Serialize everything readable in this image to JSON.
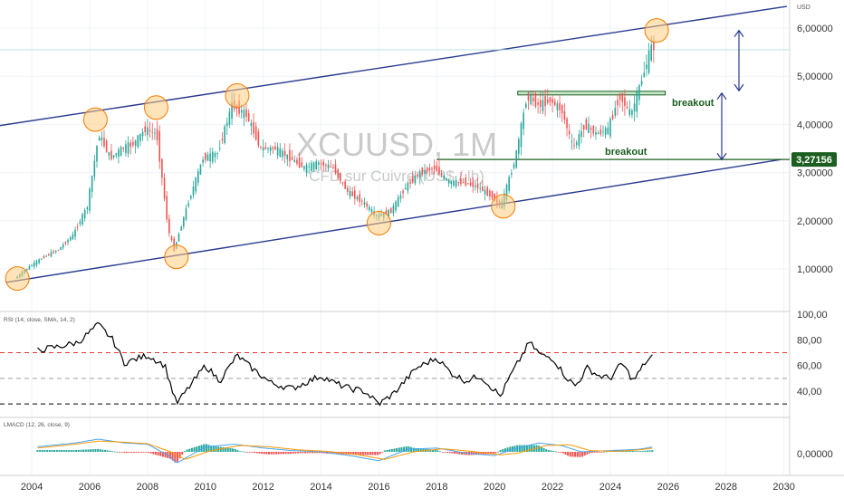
{
  "header": {
    "symbol": "XCUUSD, 1M",
    "subtitle": "CFD sur Cuivre (US$ / lb)",
    "currency": "USD"
  },
  "price_axis": {
    "ticks": [
      "6,00000",
      "5,00000",
      "4,00000",
      "3,00000",
      "2,00000",
      "1,00000"
    ],
    "tick_values": [
      6,
      5,
      4,
      3,
      2,
      1
    ],
    "current_price_label": "3,27156",
    "current_price": 3.27156
  },
  "time_axis": {
    "ticks": [
      "2004",
      "2006",
      "2008",
      "2010",
      "2012",
      "2014",
      "2016",
      "2018",
      "2020",
      "2022",
      "2024",
      "2026",
      "2028",
      "2030"
    ],
    "tick_years": [
      2004,
      2006,
      2008,
      2010,
      2012,
      2014,
      2016,
      2018,
      2020,
      2022,
      2024,
      2026,
      2028,
      2030
    ]
  },
  "annotations": {
    "breakout_upper": "breakout",
    "breakout_lower": "breakout"
  },
  "rsi": {
    "label": "RSI (14, close, SMA, 14, 2)",
    "ticks": [
      "100,00",
      "80,00",
      "60,00",
      "40,00"
    ],
    "tick_values": [
      100,
      80,
      60,
      40
    ],
    "upper_level": 70,
    "middle_level": 50,
    "lower_level": 30
  },
  "macd": {
    "label": "LMACD (12, 26, close, 9)",
    "ticks": [
      "0,00000"
    ]
  },
  "colors": {
    "bull": "#26a69a",
    "bear": "#ef5350",
    "channel": "#2a3b8f",
    "support": "#1b5e20",
    "circle_fill": "#ffcc80",
    "circle_stroke": "#f57c00",
    "rsi_line": "#000000",
    "rsi_upper": "#e53935",
    "rsi_mid": "#9e9e9e",
    "macd_line": "#42a5f5",
    "signal_line": "#ff9800",
    "price_tag": "#1b5e20"
  },
  "chart_data": {
    "type": "candlestick",
    "title": "XCUUSD, 1M",
    "series": [
      {
        "name": "XCUUSD",
        "x": [
          2003.5,
          2004.0,
          2004.5,
          2005.0,
          2005.5,
          2006.0,
          2006.4,
          2006.8,
          2007.2,
          2007.6,
          2008.0,
          2008.4,
          2008.8,
          2009.0,
          2009.5,
          2010.0,
          2010.5,
          2011.0,
          2011.5,
          2012.0,
          2012.5,
          2013.0,
          2013.5,
          2014.0,
          2014.5,
          2015.0,
          2015.5,
          2016.0,
          2016.5,
          2017.0,
          2017.5,
          2018.0,
          2018.5,
          2019.0,
          2019.5,
          2020.0,
          2020.3,
          2020.8,
          2021.2,
          2021.6,
          2022.0,
          2022.4,
          2022.8,
          2023.2,
          2023.6,
          2024.0,
          2024.4,
          2024.8,
          2025.2,
          2025.5
        ],
        "y": [
          0.8,
          1.05,
          1.25,
          1.4,
          1.7,
          2.3,
          3.8,
          3.3,
          3.5,
          3.6,
          3.9,
          3.8,
          1.8,
          1.4,
          2.4,
          3.3,
          3.4,
          4.4,
          4.2,
          3.5,
          3.5,
          3.3,
          3.1,
          3.2,
          3.1,
          2.6,
          2.4,
          2.1,
          2.2,
          2.7,
          3.0,
          3.1,
          2.8,
          2.8,
          2.7,
          2.5,
          2.3,
          3.3,
          4.6,
          4.4,
          4.5,
          4.3,
          3.5,
          4.0,
          3.8,
          3.9,
          4.6,
          4.2,
          5.0,
          5.6
        ]
      }
    ],
    "xlim": [
      2002.9,
      2030.2
    ],
    "ylim": [
      0.2,
      6.45
    ],
    "yscale": "linear"
  },
  "overlays": {
    "channel_upper": {
      "x1": 2002.6,
      "y1": 3.95,
      "x2": 2030.1,
      "y2": 6.45
    },
    "channel_lower": {
      "x1": 2003.1,
      "y1": 0.72,
      "x2": 2029.9,
      "y2": 3.27
    },
    "support_level": 3.27156,
    "resistance_level": 4.65,
    "highlights": [
      {
        "x": 2003.5,
        "y": 0.8
      },
      {
        "x": 2006.2,
        "y": 4.1
      },
      {
        "x": 2008.3,
        "y": 4.35
      },
      {
        "x": 2009.0,
        "y": 1.25
      },
      {
        "x": 2011.1,
        "y": 4.6
      },
      {
        "x": 2016.0,
        "y": 1.95
      },
      {
        "x": 2020.3,
        "y": 2.3
      },
      {
        "x": 2025.6,
        "y": 5.95
      }
    ],
    "rsi_series": {
      "x": [
        2004.2,
        2005.0,
        2005.6,
        2006.3,
        2006.8,
        2007.2,
        2008.0,
        2008.6,
        2009.0,
        2010.0,
        2010.5,
        2011.1,
        2011.6,
        2012.3,
        2013.0,
        2014.0,
        2014.5,
        2015.0,
        2015.5,
        2016.0,
        2016.5,
        2017.3,
        2018.0,
        2018.5,
        2019.0,
        2019.5,
        2020.2,
        2020.5,
        2021.2,
        2021.6,
        2022.0,
        2022.5,
        2022.8,
        2023.2,
        2023.6,
        2024.0,
        2024.4,
        2024.8,
        2025.2,
        2025.5
      ],
      "y": [
        72,
        75,
        78,
        92,
        80,
        62,
        68,
        60,
        30,
        60,
        48,
        68,
        58,
        46,
        42,
        52,
        46,
        42,
        40,
        30,
        38,
        58,
        66,
        54,
        48,
        52,
        36,
        50,
        78,
        68,
        66,
        50,
        44,
        58,
        52,
        50,
        62,
        48,
        62,
        68
      ]
    },
    "macd_line": {
      "x": [
        2004.2,
        2005.5,
        2006.3,
        2007.2,
        2008.0,
        2008.8,
        2009.0,
        2010.0,
        2011.0,
        2012.0,
        2013.0,
        2014.0,
        2015.0,
        2016.0,
        2017.0,
        2018.0,
        2019.0,
        2020.0,
        2020.5,
        2021.5,
        2022.3,
        2023.0,
        2024.0,
        2025.0,
        2025.5
      ],
      "y": [
        0.2,
        0.35,
        0.5,
        0.35,
        0.3,
        -0.2,
        -0.45,
        0.2,
        0.3,
        0.15,
        0.05,
        0.0,
        -0.15,
        -0.35,
        0.1,
        0.15,
        -0.05,
        -0.15,
        0.05,
        0.35,
        0.25,
        0.0,
        0.05,
        0.1,
        0.2
      ]
    },
    "signal_line": {
      "x": [
        2004.2,
        2005.5,
        2006.3,
        2007.2,
        2008.0,
        2008.8,
        2009.3,
        2010.2,
        2011.2,
        2012.2,
        2013.2,
        2014.2,
        2015.2,
        2016.2,
        2017.2,
        2018.2,
        2019.2,
        2020.2,
        2020.8,
        2021.8,
        2022.6,
        2023.3,
        2024.2,
        2025.0,
        2025.5
      ],
      "y": [
        0.15,
        0.3,
        0.42,
        0.38,
        0.32,
        0.0,
        -0.3,
        0.05,
        0.25,
        0.2,
        0.08,
        0.02,
        -0.1,
        -0.3,
        0.0,
        0.12,
        0.02,
        -0.12,
        -0.05,
        0.25,
        0.28,
        0.05,
        0.02,
        0.08,
        0.15
      ]
    }
  }
}
